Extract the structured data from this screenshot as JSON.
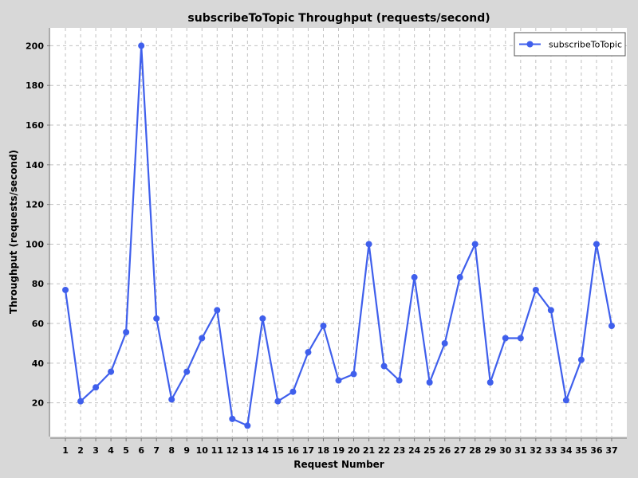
{
  "chart_data": {
    "type": "line",
    "title": "subscribeToTopic Throughput (requests/second)",
    "xlabel": "Request Number",
    "ylabel": "Throughput (requests/second)",
    "x": [
      1,
      2,
      3,
      4,
      5,
      6,
      7,
      8,
      9,
      10,
      11,
      12,
      13,
      14,
      15,
      16,
      17,
      18,
      19,
      20,
      21,
      22,
      23,
      24,
      25,
      26,
      27,
      28,
      29,
      30,
      31,
      32,
      33,
      34,
      35,
      36,
      37
    ],
    "series": [
      {
        "name": "subscribeToTopic",
        "color": "#3f5fec",
        "values": [
          76.9,
          20.8,
          27.8,
          35.7,
          55.6,
          200.0,
          62.5,
          21.7,
          35.7,
          52.6,
          66.7,
          11.9,
          8.5,
          62.5,
          20.8,
          25.6,
          45.5,
          58.8,
          31.3,
          34.5,
          100.0,
          38.5,
          31.3,
          83.3,
          30.3,
          50.0,
          83.3,
          100.0,
          30.3,
          52.6,
          52.6,
          76.9,
          66.7,
          21.3,
          41.7,
          100.0,
          58.8
        ]
      }
    ],
    "yticks": [
      20,
      40,
      60,
      80,
      100,
      120,
      140,
      160,
      180,
      200
    ],
    "ylim": [
      3,
      209
    ],
    "xlim": [
      0,
      38
    ],
    "grid": true,
    "legend_position": "top-right",
    "background": "#ffffff",
    "grid_color": "#c0c0c0"
  }
}
